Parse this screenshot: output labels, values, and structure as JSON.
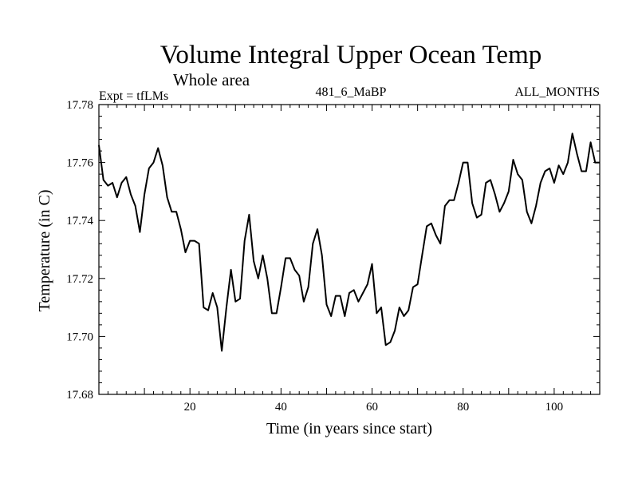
{
  "chart_data": {
    "type": "line",
    "title": "Volume Integral Upper Ocean Temp",
    "subtitle": "Whole area",
    "experiment_label": "Expt = tfLMs",
    "run_label": "481_6_MaBP",
    "months_label": "ALL_MONTHS",
    "xlabel": "Time (in years since start)",
    "ylabel": "Temperature (in C)",
    "xlim": [
      0,
      110
    ],
    "ylim": [
      17.68,
      17.78
    ],
    "x_ticks": [
      20,
      40,
      60,
      80,
      100
    ],
    "y_ticks": [
      17.68,
      17.7,
      17.72,
      17.74,
      17.76,
      17.78
    ],
    "y_tick_labels": [
      "17.68",
      "17.70",
      "17.72",
      "17.74",
      "17.76",
      "17.78"
    ],
    "grid": false,
    "series": [
      {
        "name": "Temperature",
        "color": "#000000",
        "x": [
          0,
          1,
          2,
          3,
          4,
          5,
          6,
          7,
          8,
          9,
          10,
          11,
          12,
          13,
          14,
          15,
          16,
          17,
          18,
          19,
          20,
          21,
          22,
          23,
          24,
          25,
          26,
          27,
          28,
          29,
          30,
          31,
          32,
          33,
          34,
          35,
          36,
          37,
          38,
          39,
          40,
          41,
          42,
          43,
          44,
          45,
          46,
          47,
          48,
          49,
          50,
          51,
          52,
          53,
          54,
          55,
          56,
          57,
          58,
          59,
          60,
          61,
          62,
          63,
          64,
          65,
          66,
          67,
          68,
          69,
          70,
          71,
          72,
          73,
          74,
          75,
          76,
          77,
          78,
          79,
          80,
          81,
          82,
          83,
          84,
          85,
          86,
          87,
          88,
          89,
          90,
          91,
          92,
          93,
          94,
          95,
          96,
          97,
          98,
          99,
          100,
          101,
          102,
          103,
          104,
          105,
          106,
          107,
          108,
          109,
          110
        ],
        "values": [
          17.766,
          17.754,
          17.752,
          17.753,
          17.748,
          17.753,
          17.755,
          17.749,
          17.745,
          17.736,
          17.749,
          17.758,
          17.76,
          17.765,
          17.759,
          17.748,
          17.743,
          17.743,
          17.737,
          17.729,
          17.733,
          17.733,
          17.732,
          17.71,
          17.709,
          17.715,
          17.71,
          17.695,
          17.71,
          17.723,
          17.712,
          17.713,
          17.733,
          17.742,
          17.726,
          17.72,
          17.728,
          17.72,
          17.708,
          17.708,
          17.717,
          17.727,
          17.727,
          17.723,
          17.721,
          17.712,
          17.717,
          17.732,
          17.737,
          17.728,
          17.711,
          17.707,
          17.714,
          17.714,
          17.707,
          17.715,
          17.716,
          17.712,
          17.715,
          17.718,
          17.725,
          17.708,
          17.71,
          17.697,
          17.698,
          17.702,
          17.71,
          17.707,
          17.709,
          17.717,
          17.718,
          17.728,
          17.738,
          17.739,
          17.735,
          17.732,
          17.745,
          17.747,
          17.747,
          17.753,
          17.76,
          17.76,
          17.746,
          17.741,
          17.742,
          17.753,
          17.754,
          17.749,
          17.743,
          17.746,
          17.75,
          17.761,
          17.756,
          17.754,
          17.743,
          17.739,
          17.745,
          17.753,
          17.757,
          17.758,
          17.753,
          17.759,
          17.756,
          17.76,
          17.77,
          17.763,
          17.757,
          17.757,
          17.767,
          17.76,
          17.76
        ]
      }
    ]
  }
}
